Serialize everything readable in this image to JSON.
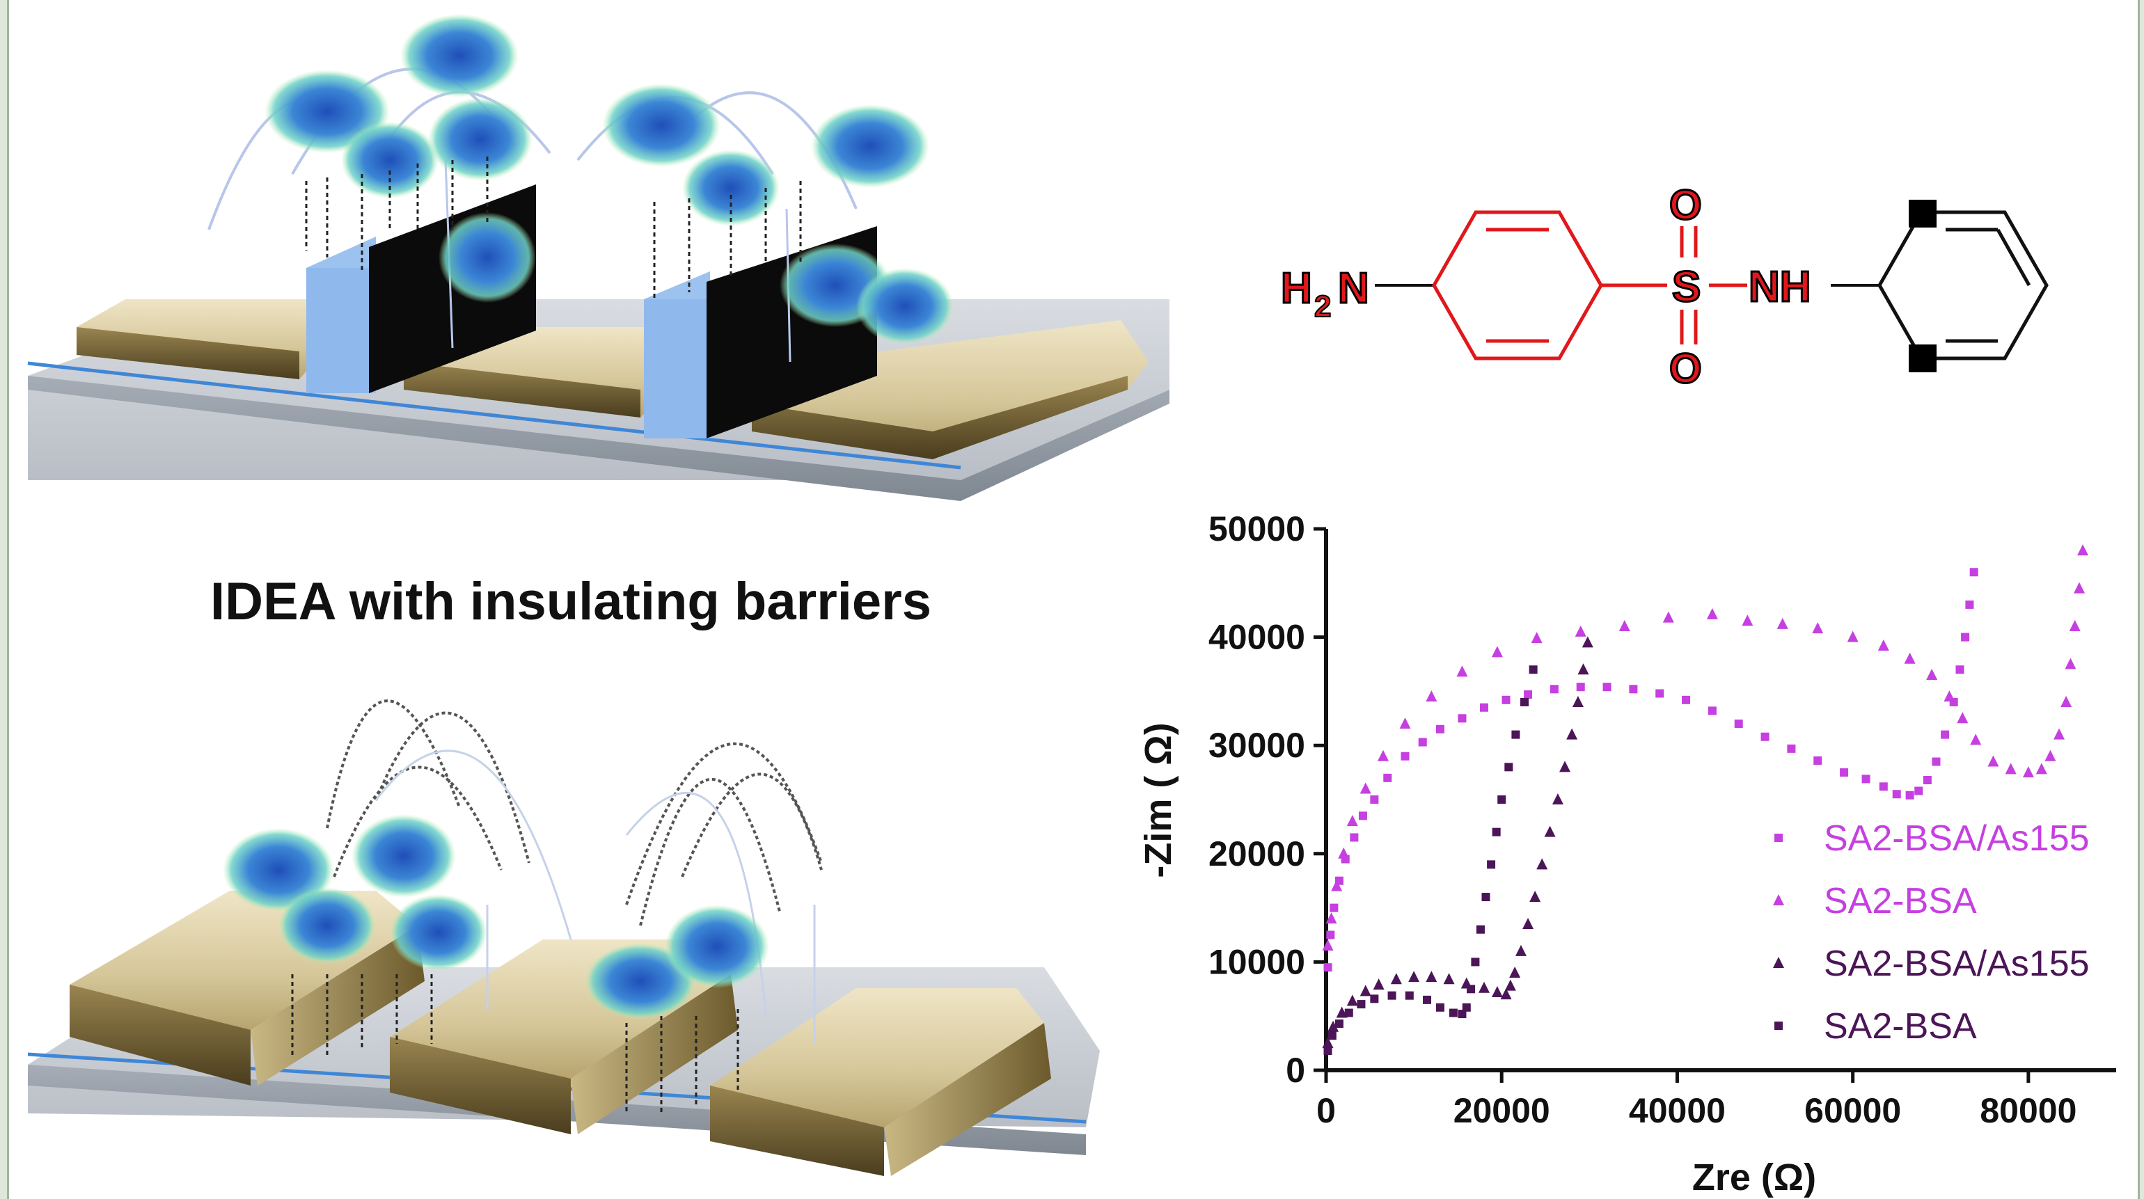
{
  "figure": {
    "caption": "IDEA with insulating barriers"
  },
  "molecule": {
    "atoms": {
      "h": "H",
      "sub2": "2",
      "n_amine": "N",
      "s": "S",
      "o_top": "O",
      "o_bottom": "O",
      "nh": "NH"
    },
    "colors": {
      "highlight_red": "#e0181b",
      "bond_black": "#111111"
    }
  },
  "chart_data": {
    "type": "scatter",
    "title": "",
    "xlabel": "Zre (Ω)",
    "ylabel": "-Zim ( Ω)",
    "xlim": [
      0,
      90000
    ],
    "ylim": [
      0,
      50000
    ],
    "x_ticks": [
      "0",
      "20000",
      "40000",
      "60000",
      "80000"
    ],
    "y_ticks": [
      "0",
      "10000",
      "20000",
      "30000",
      "40000",
      "50000"
    ],
    "legend_position": "lower-right",
    "series": [
      {
        "name": "SA2-BSA/As155",
        "marker": "square",
        "color": "#c63fe0",
        "points": [
          [
            200,
            9500
          ],
          [
            500,
            12500
          ],
          [
            900,
            15000
          ],
          [
            1500,
            17500
          ],
          [
            2200,
            19500
          ],
          [
            3200,
            21500
          ],
          [
            4200,
            23500
          ],
          [
            5500,
            25000
          ],
          [
            7000,
            27000
          ],
          [
            9000,
            29000
          ],
          [
            11000,
            30300
          ],
          [
            13000,
            31500
          ],
          [
            15500,
            32500
          ],
          [
            18000,
            33500
          ],
          [
            20500,
            34200
          ],
          [
            23000,
            34700
          ],
          [
            26000,
            35200
          ],
          [
            29000,
            35400
          ],
          [
            32000,
            35400
          ],
          [
            35000,
            35200
          ],
          [
            38000,
            34800
          ],
          [
            41000,
            34200
          ],
          [
            44000,
            33200
          ],
          [
            47000,
            32000
          ],
          [
            50000,
            30800
          ],
          [
            53000,
            29700
          ],
          [
            56000,
            28600
          ],
          [
            59000,
            27500
          ],
          [
            61500,
            26900
          ],
          [
            63500,
            26200
          ],
          [
            65000,
            25500
          ],
          [
            66500,
            25400
          ],
          [
            67500,
            25800
          ],
          [
            68500,
            26800
          ],
          [
            69500,
            28500
          ],
          [
            70500,
            31000
          ],
          [
            71500,
            34000
          ],
          [
            72200,
            37000
          ],
          [
            72800,
            40000
          ],
          [
            73300,
            43000
          ],
          [
            73800,
            46000
          ]
        ]
      },
      {
        "name": "SA2-BSA",
        "marker": "triangle",
        "color": "#c63fe0",
        "points": [
          [
            200,
            11500
          ],
          [
            600,
            14000
          ],
          [
            1200,
            17000
          ],
          [
            2000,
            20000
          ],
          [
            3000,
            23000
          ],
          [
            4500,
            26000
          ],
          [
            6500,
            29000
          ],
          [
            9000,
            32000
          ],
          [
            12000,
            34500
          ],
          [
            15500,
            36800
          ],
          [
            19500,
            38600
          ],
          [
            24000,
            39900
          ],
          [
            29000,
            40500
          ],
          [
            34000,
            41000
          ],
          [
            39000,
            41800
          ],
          [
            44000,
            42100
          ],
          [
            48000,
            41500
          ],
          [
            52000,
            41200
          ],
          [
            56000,
            40800
          ],
          [
            60000,
            40000
          ],
          [
            63500,
            39200
          ],
          [
            66500,
            38000
          ],
          [
            69000,
            36500
          ],
          [
            71000,
            34500
          ],
          [
            72500,
            32500
          ],
          [
            74000,
            30500
          ],
          [
            76000,
            28500
          ],
          [
            78000,
            27800
          ],
          [
            80000,
            27500
          ],
          [
            81500,
            27800
          ],
          [
            82500,
            29000
          ],
          [
            83500,
            31000
          ],
          [
            84300,
            34000
          ],
          [
            84800,
            37500
          ],
          [
            85300,
            41000
          ],
          [
            85800,
            44500
          ],
          [
            86200,
            48000
          ]
        ]
      },
      {
        "name": "SA2-BSA/As155",
        "marker": "triangle",
        "color": "#4b1557",
        "points": [
          [
            200,
            2500
          ],
          [
            800,
            4000
          ],
          [
            1800,
            5300
          ],
          [
            3000,
            6400
          ],
          [
            4500,
            7300
          ],
          [
            6000,
            7900
          ],
          [
            8000,
            8400
          ],
          [
            10000,
            8600
          ],
          [
            12000,
            8600
          ],
          [
            14000,
            8400
          ],
          [
            16000,
            8000
          ],
          [
            18000,
            7600
          ],
          [
            19500,
            7200
          ],
          [
            20500,
            7000
          ],
          [
            21000,
            7800
          ],
          [
            21500,
            9000
          ],
          [
            22200,
            11000
          ],
          [
            23000,
            13500
          ],
          [
            23800,
            16000
          ],
          [
            24600,
            19000
          ],
          [
            25500,
            22000
          ],
          [
            26400,
            25000
          ],
          [
            27200,
            28000
          ],
          [
            28000,
            31000
          ],
          [
            28700,
            34000
          ],
          [
            29300,
            37000
          ],
          [
            29800,
            39500
          ]
        ]
      },
      {
        "name": "SA2-BSA",
        "marker": "square",
        "color": "#4b1557",
        "points": [
          [
            200,
            1800
          ],
          [
            700,
            3200
          ],
          [
            1500,
            4300
          ],
          [
            2600,
            5300
          ],
          [
            4000,
            6100
          ],
          [
            5500,
            6600
          ],
          [
            7500,
            6900
          ],
          [
            9500,
            6900
          ],
          [
            11500,
            6500
          ],
          [
            13000,
            5800
          ],
          [
            14500,
            5300
          ],
          [
            15500,
            5200
          ],
          [
            16000,
            5800
          ],
          [
            16500,
            7500
          ],
          [
            17000,
            10000
          ],
          [
            17600,
            13000
          ],
          [
            18200,
            16000
          ],
          [
            18800,
            19000
          ],
          [
            19400,
            22000
          ],
          [
            20000,
            25000
          ],
          [
            20800,
            28000
          ],
          [
            21600,
            31000
          ],
          [
            22600,
            34000
          ],
          [
            23600,
            37000
          ]
        ]
      }
    ]
  }
}
